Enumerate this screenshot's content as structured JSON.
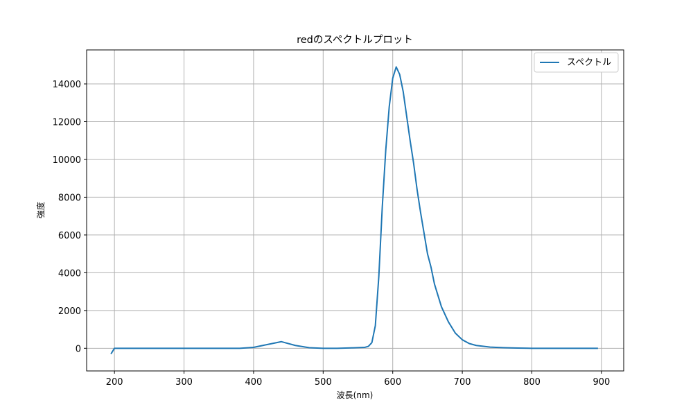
{
  "chart_data": {
    "type": "line",
    "title": "redのスペクトルプロット",
    "xlabel": "波長(nm)",
    "ylabel": "強度",
    "xlim": [
      160,
      932
    ],
    "ylim": [
      -1200,
      15800
    ],
    "x_ticks": [
      200,
      300,
      400,
      500,
      600,
      700,
      800,
      900
    ],
    "y_ticks": [
      0,
      2000,
      4000,
      6000,
      8000,
      10000,
      12000,
      14000
    ],
    "grid": true,
    "legend_position": "top-right",
    "series": [
      {
        "name": "スペクトル",
        "color": "#1f77b4",
        "x": [
          195,
          200,
          250,
          296,
          300,
          366,
          380,
          400,
          420,
          440,
          460,
          480,
          500,
          520,
          540,
          560,
          565,
          570,
          575,
          580,
          585,
          590,
          595,
          600,
          605,
          610,
          615,
          620,
          625,
          630,
          635,
          640,
          645,
          650,
          655,
          660,
          665,
          670,
          680,
          690,
          700,
          710,
          720,
          740,
          760,
          780,
          800,
          820,
          840,
          860,
          880,
          895
        ],
        "y": [
          -300,
          0,
          0,
          0,
          0,
          0,
          0,
          50,
          200,
          350,
          150,
          30,
          0,
          0,
          20,
          50,
          100,
          300,
          1200,
          3800,
          7500,
          10500,
          12800,
          14300,
          14900,
          14500,
          13600,
          12300,
          11000,
          9800,
          8400,
          7200,
          6100,
          5000,
          4300,
          3400,
          2800,
          2200,
          1400,
          800,
          450,
          250,
          150,
          60,
          30,
          10,
          0,
          0,
          0,
          0,
          0,
          0
        ]
      }
    ]
  }
}
